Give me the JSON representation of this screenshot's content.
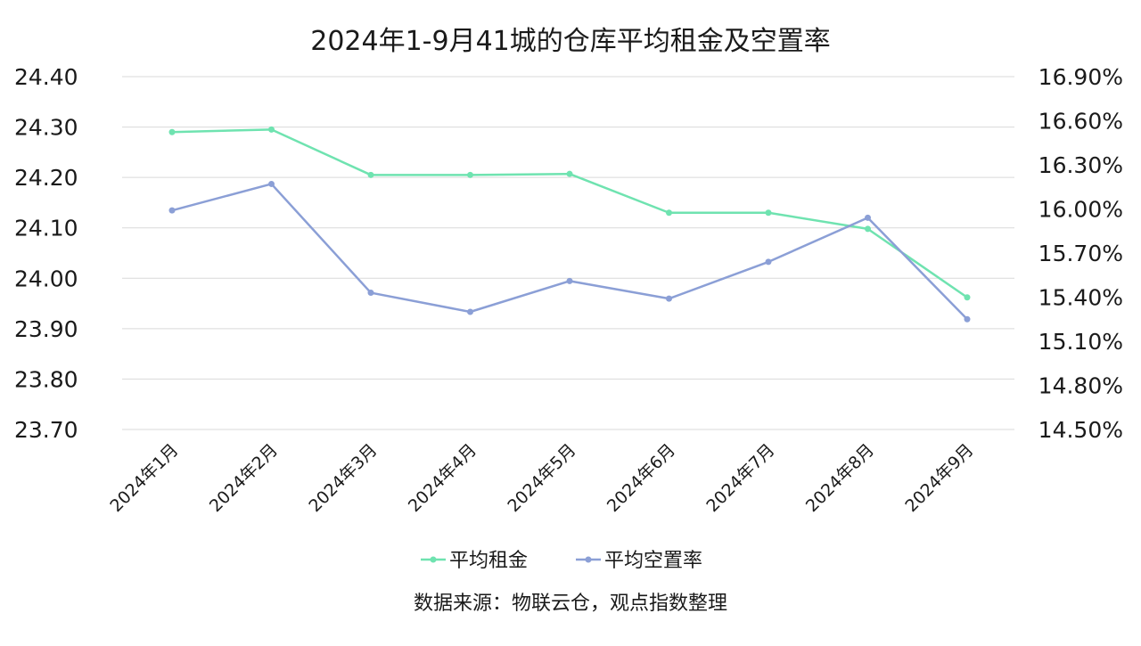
{
  "chart_data": {
    "type": "line",
    "title": "2024年1-9月41城的仓库平均租金及空置率",
    "categories": [
      "2024年1月",
      "2024年2月",
      "2024年3月",
      "2024年4月",
      "2024年5月",
      "2024年6月",
      "2024年7月",
      "2024年8月",
      "2024年9月"
    ],
    "series": [
      {
        "name": "平均租金",
        "axis": "left",
        "color": "#6fe3b0",
        "values": [
          24.29,
          24.295,
          24.205,
          24.205,
          24.207,
          24.13,
          24.13,
          24.098,
          23.962
        ]
      },
      {
        "name": "平均空置率",
        "axis": "right",
        "color": "#8b9fd6",
        "values": [
          15.99,
          16.17,
          15.43,
          15.3,
          15.51,
          15.39,
          15.64,
          15.94,
          15.25
        ]
      }
    ],
    "y_left": {
      "ylim": [
        23.7,
        24.4
      ],
      "ticks": [
        "24.40",
        "24.30",
        "24.20",
        "24.10",
        "24.00",
        "23.90",
        "23.80",
        "23.70"
      ]
    },
    "y_right": {
      "ylim": [
        14.5,
        16.9
      ],
      "unit": "%",
      "ticks": [
        "16.90%",
        "16.60%",
        "16.30%",
        "16.00%",
        "15.70%",
        "15.40%",
        "15.10%",
        "14.80%",
        "14.50%"
      ]
    },
    "grid": "horizontal",
    "legend_position": "bottom",
    "source_note": "数据来源：物联云仓，观点指数整理"
  }
}
